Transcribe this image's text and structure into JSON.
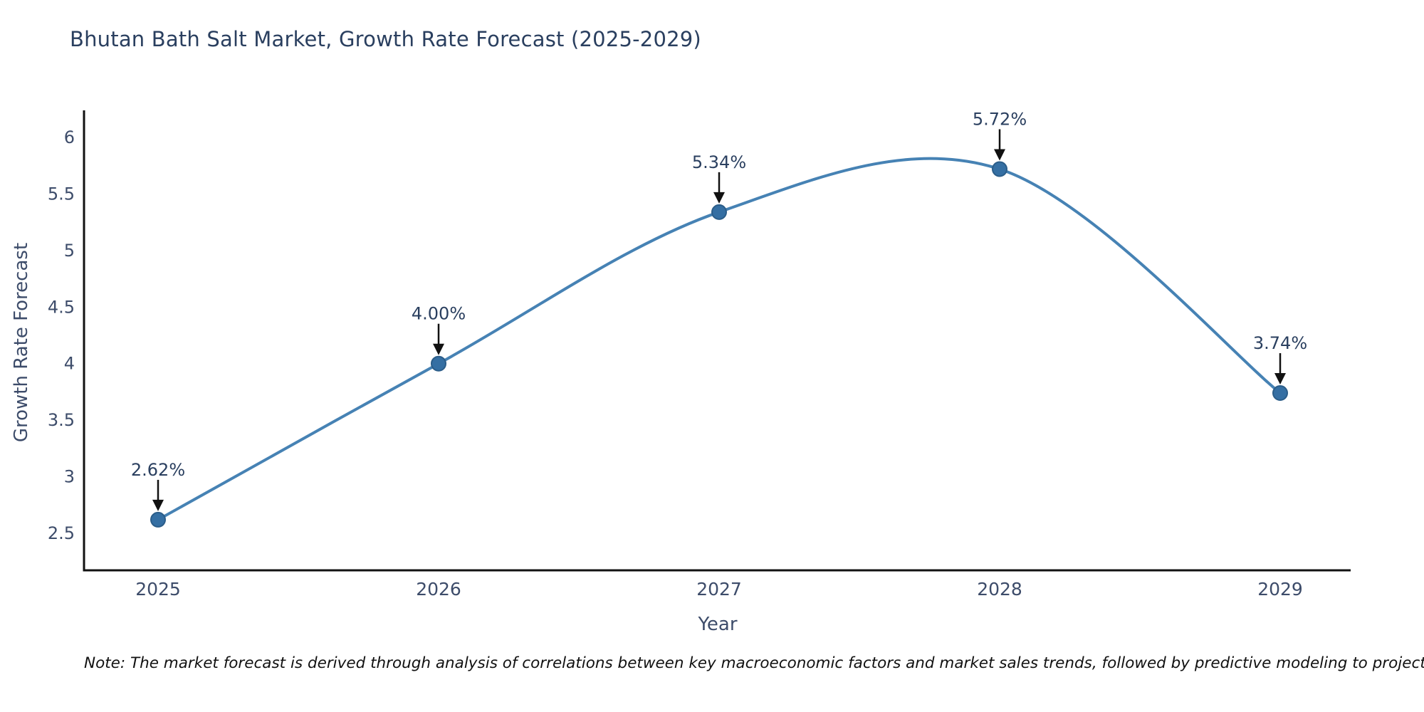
{
  "title": "Bhutan Bath Salt Market, Growth Rate Forecast (2025-2029)",
  "note": "Note: The market forecast is derived through analysis of correlations between key macroeconomic factors and market sales trends, followed by predictive modeling to project future sales",
  "chart_data": {
    "type": "line",
    "line_shape": "spline",
    "title": "Bhutan Bath Salt Market, Growth Rate Forecast (2025-2029)",
    "xlabel": "Year",
    "ylabel": "Growth Rate Forecast",
    "x": [
      "2025",
      "2026",
      "2027",
      "2028",
      "2029"
    ],
    "y": [
      2.62,
      4.0,
      5.34,
      5.72,
      3.74
    ],
    "point_labels": [
      "2.62%",
      "4.00%",
      "5.34%",
      "5.72%",
      "3.74%"
    ],
    "yticks": [
      2.5,
      3,
      3.5,
      4,
      4.5,
      5,
      5.5,
      6
    ],
    "ylim": [
      2.1,
      6.25
    ],
    "grid": false,
    "legend": "none",
    "colors": {
      "line": "#4682b4",
      "marker_fill": "#356fa3",
      "marker_edge": "#2b5d89",
      "axis": "#111111",
      "tick_text": "#3d4c6a",
      "annotation_text": "#2a3f5f",
      "arrow": "#111111",
      "title_text": "#2a3f5f"
    }
  }
}
